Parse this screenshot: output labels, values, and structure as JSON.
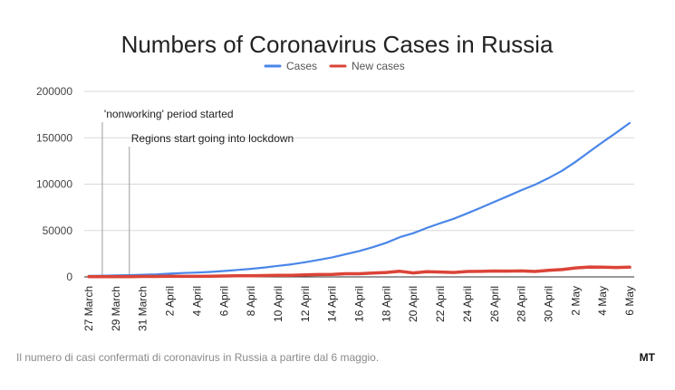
{
  "chart_data": {
    "type": "line",
    "title": "Numbers of Coronavirus Cases in Russia",
    "xlabel": "",
    "ylabel": "",
    "ylim": [
      0,
      200000
    ],
    "yticks": [
      0,
      50000,
      100000,
      150000,
      200000
    ],
    "ytick_labels": [
      "0",
      "50000",
      "100000",
      "150000",
      "200000"
    ],
    "grid": true,
    "legend_position": "top-center",
    "x": [
      "27 March",
      "28 March",
      "29 March",
      "30 March",
      "31 March",
      "1 April",
      "2 April",
      "3 April",
      "4 April",
      "5 April",
      "6 April",
      "7 April",
      "8 April",
      "9 April",
      "10 April",
      "11 April",
      "12 April",
      "13 April",
      "14 April",
      "15 April",
      "16 April",
      "17 April",
      "18 April",
      "19 April",
      "20 April",
      "21 April",
      "22 April",
      "23 April",
      "24 April",
      "25 April",
      "26 April",
      "27 April",
      "28 April",
      "29 April",
      "30 April",
      "1 May",
      "2 May",
      "3 May",
      "4 May",
      "5 May",
      "6 May"
    ],
    "xtick_labels": [
      "27 March",
      "29 March",
      "31 March",
      "2 April",
      "4 April",
      "6 April",
      "8 April",
      "10 April",
      "12 April",
      "14 April",
      "16 April",
      "18 April",
      "20 April",
      "22 April",
      "24 April",
      "26 April",
      "28 April",
      "30 April",
      "2 May",
      "4 May",
      "6 May"
    ],
    "series": [
      {
        "name": "Cases",
        "color": "#4a86e8",
        "values": [
          1036,
          1264,
          1534,
          1836,
          2337,
          2777,
          3548,
          4149,
          4731,
          5389,
          6343,
          7497,
          8672,
          10131,
          11917,
          13584,
          15770,
          18328,
          21102,
          24490,
          27938,
          32008,
          36793,
          42853,
          47121,
          52763,
          57999,
          62773,
          68622,
          74588,
          80949,
          87147,
          93558,
          99399,
          106498,
          114431,
          124054,
          134686,
          145268,
          155370,
          165929
        ]
      },
      {
        "name": "New cases",
        "color": "#db4437",
        "values": [
          196,
          228,
          270,
          302,
          501,
          440,
          771,
          601,
          582,
          658,
          954,
          1154,
          1175,
          1459,
          1786,
          1667,
          2186,
          2558,
          2774,
          3388,
          3448,
          4070,
          4785,
          6060,
          4268,
          5642,
          5236,
          4774,
          5849,
          5966,
          6361,
          6198,
          6411,
          5841,
          7099,
          7933,
          9623,
          10633,
          10581,
          10102,
          10559
        ]
      }
    ],
    "annotations": [
      {
        "text": "'nonworking' period started",
        "x": "28 March"
      },
      {
        "text": "Regions start going into lockdown",
        "x": "30 March"
      }
    ]
  },
  "caption": "Il numero di casi confermati di coronavirus in Russia a partire dal 6 maggio.",
  "source": "MT"
}
